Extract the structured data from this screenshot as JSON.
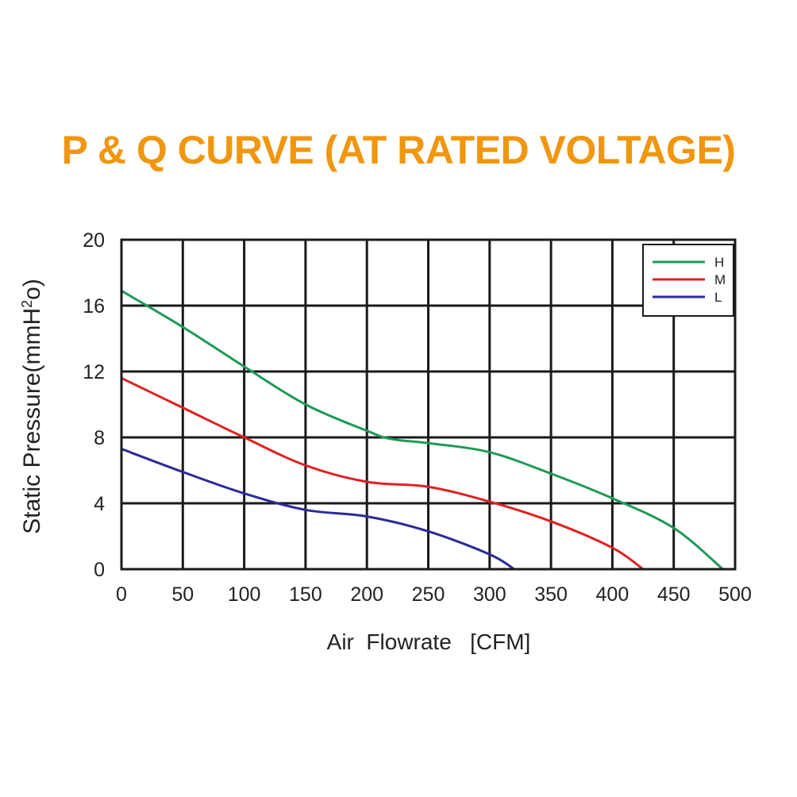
{
  "chart_data": {
    "type": "line",
    "title": "P & Q CURVE (AT RATED VOLTAGE)",
    "xlabel": "Air  Flowrate   [CFM]",
    "ylabel_main": "Static Pressure(mmH",
    "ylabel_sup": "2",
    "ylabel_end": "o)",
    "xlim": [
      0,
      500
    ],
    "ylim": [
      0,
      20
    ],
    "xticks": [
      0,
      50,
      100,
      150,
      200,
      250,
      300,
      350,
      400,
      450,
      500
    ],
    "yticks": [
      0,
      4,
      8,
      12,
      16,
      20
    ],
    "grid": true,
    "legend_position": "top-right",
    "series": [
      {
        "name": "H",
        "color": "#1e9a57",
        "points": [
          [
            0,
            16.9
          ],
          [
            50,
            14.7
          ],
          [
            100,
            12.3
          ],
          [
            150,
            10.0
          ],
          [
            200,
            8.4
          ],
          [
            220,
            7.9
          ],
          [
            250,
            7.65
          ],
          [
            300,
            7.1
          ],
          [
            350,
            5.8
          ],
          [
            400,
            4.3
          ],
          [
            450,
            2.5
          ],
          [
            490,
            0
          ]
        ]
      },
      {
        "name": "M",
        "color": "#e02020",
        "points": [
          [
            0,
            11.6
          ],
          [
            50,
            9.8
          ],
          [
            100,
            8.0
          ],
          [
            150,
            6.3
          ],
          [
            200,
            5.3
          ],
          [
            250,
            5.0
          ],
          [
            300,
            4.1
          ],
          [
            350,
            2.9
          ],
          [
            400,
            1.3
          ],
          [
            425,
            0
          ]
        ]
      },
      {
        "name": "L",
        "color": "#2a2a9a",
        "points": [
          [
            0,
            7.3
          ],
          [
            50,
            5.9
          ],
          [
            100,
            4.6
          ],
          [
            150,
            3.6
          ],
          [
            200,
            3.2
          ],
          [
            250,
            2.3
          ],
          [
            300,
            0.9
          ],
          [
            320,
            0
          ]
        ]
      }
    ]
  }
}
